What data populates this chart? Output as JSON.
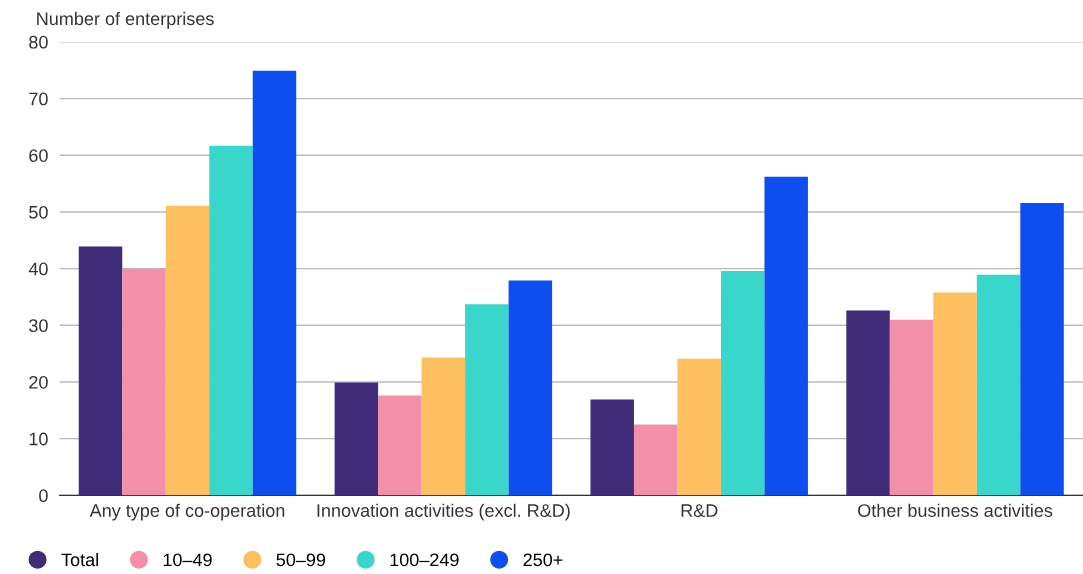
{
  "chart_data": {
    "type": "bar",
    "ylabel": "Number of enterprises",
    "categories": [
      "Any type of co-operation",
      "Innovation activities (excl. R&D)",
      "R&D",
      "Other business activities"
    ],
    "series": [
      {
        "name": "Total",
        "color": "#3f2d7a",
        "values": [
          43.9,
          19.9,
          16.9,
          32.6
        ]
      },
      {
        "name": "10–49",
        "color": "#f48fab",
        "values": [
          40.0,
          17.6,
          12.5,
          31.0
        ]
      },
      {
        "name": "50–99",
        "color": "#fdbf5f",
        "values": [
          51.1,
          24.3,
          24.1,
          35.8
        ]
      },
      {
        "name": "100–249",
        "color": "#39d7cb",
        "values": [
          61.7,
          33.7,
          39.6,
          38.9
        ]
      },
      {
        "name": "250+",
        "color": "#0e4ef0",
        "values": [
          74.9,
          37.9,
          56.2,
          51.6
        ]
      }
    ],
    "ylim": [
      0,
      80
    ],
    "yticks": [
      0,
      10,
      20,
      30,
      40,
      50,
      60,
      70,
      80
    ],
    "grid": "y",
    "legend": "bottom"
  }
}
